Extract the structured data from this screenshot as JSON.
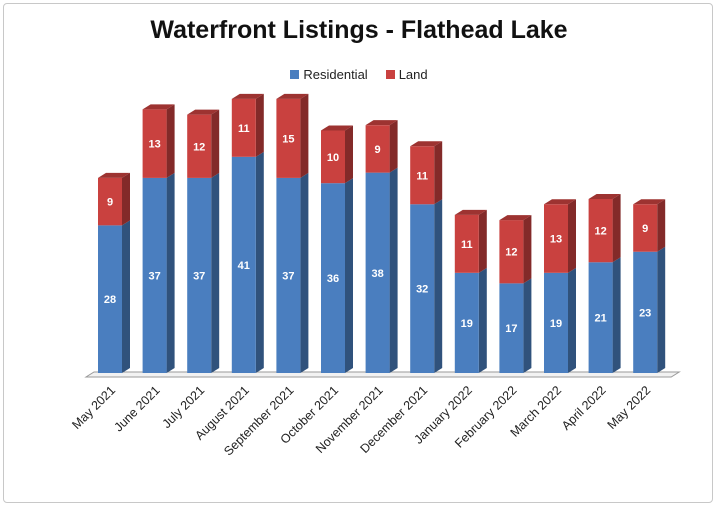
{
  "chart_data": {
    "type": "bar",
    "stacked": true,
    "title": "Waterfront Listings - Flathead Lake",
    "xlabel": "",
    "ylabel": "",
    "ylim": [
      0,
      55
    ],
    "grid": false,
    "legend_position": "top",
    "categories": [
      "May 2021",
      "June 2021",
      "July 2021",
      "August 2021",
      "September 2021",
      "October 2021",
      "November 2021",
      "December 2021",
      "January 2022",
      "February 2022",
      "March 2022",
      "April 2022",
      "May 2022"
    ],
    "series": [
      {
        "name": "Residential",
        "color": "#4a7ebf",
        "values": [
          28,
          37,
          37,
          41,
          37,
          36,
          38,
          32,
          19,
          17,
          19,
          21,
          23
        ]
      },
      {
        "name": "Land",
        "color": "#c9413f",
        "values": [
          9,
          13,
          12,
          11,
          15,
          10,
          9,
          11,
          11,
          12,
          13,
          12,
          9
        ]
      }
    ]
  }
}
